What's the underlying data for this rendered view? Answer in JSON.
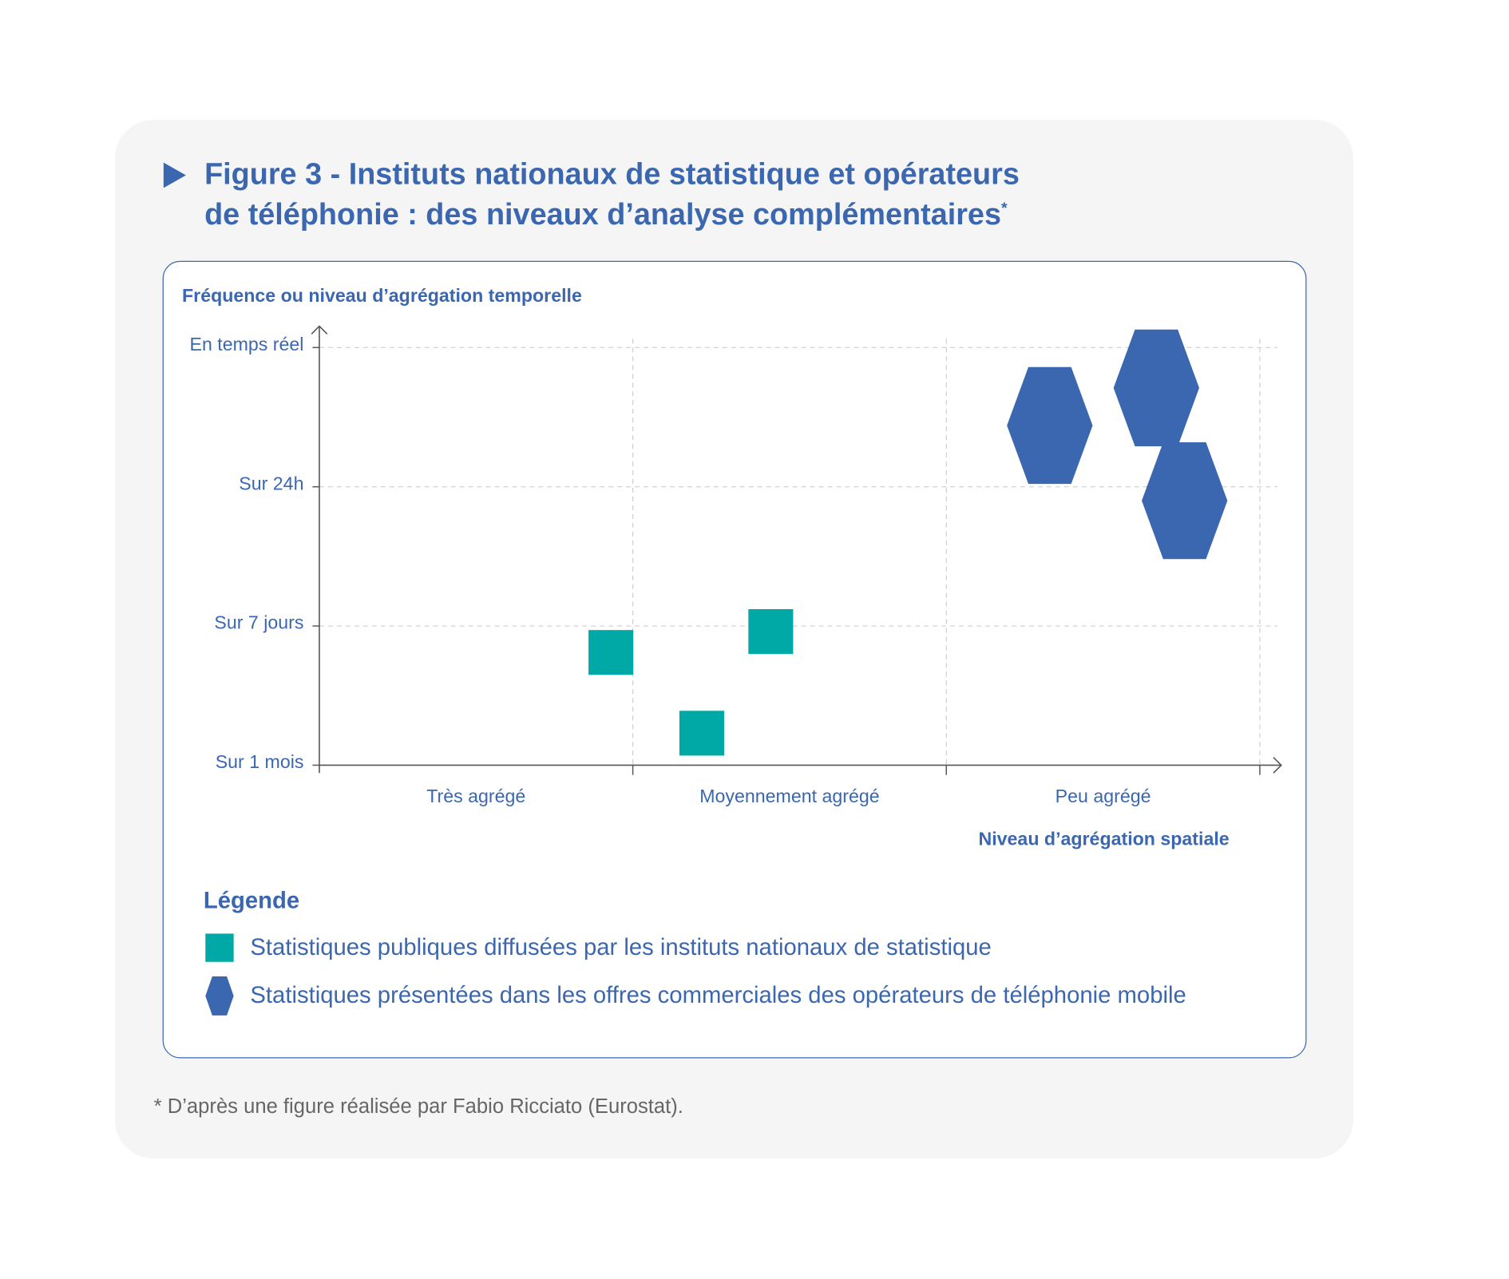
{
  "chart_data": {
    "type": "scatter",
    "title": "Figure 3 - Instituts nationaux de statistique et opérateurs de téléphonie : des niveaux d’analyse complémentaires",
    "title_line1": "Figure 3 - Instituts nationaux de statistique et opérateurs",
    "title_line2": "de téléphonie : des niveaux d’analyse complémentaires",
    "title_mark": "*",
    "ylabel": "Fréquence ou niveau d’agrégation temporelle",
    "xlabel": "Niveau d’agrégation spatiale",
    "yticks": [
      "Sur 1 mois",
      "Sur 7 jours",
      "Sur 24h",
      "En temps réel"
    ],
    "xticks": [
      "Très agrégé",
      "Moyennement agrégé",
      "Peu agrégé"
    ],
    "xlim": [
      0,
      3
    ],
    "ylim": [
      0,
      3
    ],
    "grid": true,
    "series": [
      {
        "name": "Statistiques publiques diffusées par les instituts nationaux de statistique",
        "marker": "square",
        "color": "#00a9a5",
        "points": [
          {
            "x": 0.93,
            "y": 0.81
          },
          {
            "x": 1.22,
            "y": 0.23
          },
          {
            "x": 1.44,
            "y": 0.96
          }
        ]
      },
      {
        "name": "Statistiques présentées dans les offres commerciales des opérateurs de téléphonie mobile",
        "marker": "hexagon",
        "color": "#3b67b0",
        "points": [
          {
            "x": 2.33,
            "y": 2.44
          },
          {
            "x": 2.67,
            "y": 2.71
          },
          {
            "x": 2.76,
            "y": 1.9
          }
        ]
      }
    ],
    "legend_title": "Légende",
    "legend_placement": "bottom"
  },
  "footnote": "* D’après une figure réalisée par Fabio Ricciato (Eurostat)."
}
